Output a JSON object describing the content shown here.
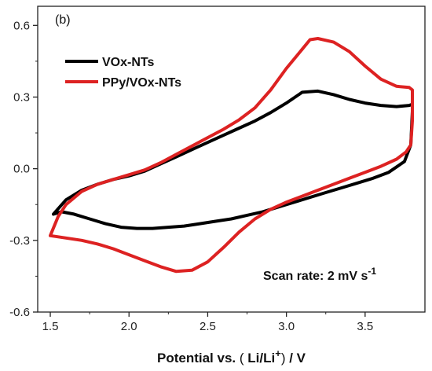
{
  "chart_data": {
    "type": "line",
    "panel_label": "(b)",
    "title": "",
    "xlabel_main": "Potential vs.",
    "xlabel_paren_open": "(",
    "xlabel_ion_base": "Li/Li",
    "xlabel_ion_sup": "+",
    "xlabel_paren_close": ")",
    "xlabel_unit": "/ V",
    "ylabel": "",
    "xlim": [
      1.42,
      3.88
    ],
    "ylim": [
      -0.6,
      0.68
    ],
    "x_ticks": [
      "1.5",
      "2.0",
      "2.5",
      "3.0",
      "3.5"
    ],
    "x_tick_values": [
      1.5,
      2.0,
      2.5,
      3.0,
      3.5
    ],
    "y_ticks": [
      "-0.6",
      "-0.3",
      "0.0",
      "0.3",
      "0.6"
    ],
    "y_tick_values": [
      -0.6,
      -0.3,
      0.0,
      0.3,
      0.6
    ],
    "grid": false,
    "legend_position": "top-left",
    "annotation_main": "Scan rate: 2 mV s",
    "annotation_sup": "-1",
    "series": [
      {
        "name": "VOx-NTs",
        "color": "#000000",
        "closed": true,
        "x": [
          1.52,
          1.6,
          1.7,
          1.8,
          1.9,
          2.0,
          2.1,
          2.2,
          2.3,
          2.4,
          2.5,
          2.6,
          2.7,
          2.8,
          2.9,
          3.0,
          3.1,
          3.2,
          3.3,
          3.4,
          3.5,
          3.6,
          3.7,
          3.78,
          3.8,
          3.8,
          3.79,
          3.75,
          3.65,
          3.55,
          3.45,
          3.35,
          3.25,
          3.15,
          3.05,
          2.95,
          2.85,
          2.75,
          2.65,
          2.55,
          2.45,
          2.35,
          2.25,
          2.15,
          2.05,
          1.95,
          1.85,
          1.75,
          1.65,
          1.57,
          1.52
        ],
        "y": [
          -0.19,
          -0.13,
          -0.09,
          -0.065,
          -0.045,
          -0.03,
          -0.01,
          0.02,
          0.05,
          0.08,
          0.11,
          0.14,
          0.17,
          0.2,
          0.235,
          0.275,
          0.32,
          0.325,
          0.31,
          0.29,
          0.275,
          0.265,
          0.26,
          0.265,
          0.27,
          0.24,
          0.1,
          0.03,
          -0.015,
          -0.04,
          -0.06,
          -0.08,
          -0.1,
          -0.12,
          -0.14,
          -0.16,
          -0.18,
          -0.195,
          -0.21,
          -0.22,
          -0.23,
          -0.24,
          -0.245,
          -0.25,
          -0.25,
          -0.245,
          -0.23,
          -0.21,
          -0.19,
          -0.18,
          -0.19
        ]
      },
      {
        "name": "PPy/VOx-NTs",
        "color": "#dd2222",
        "closed": true,
        "x": [
          1.5,
          1.55,
          1.6,
          1.7,
          1.8,
          1.9,
          2.0,
          2.1,
          2.2,
          2.3,
          2.4,
          2.5,
          2.6,
          2.7,
          2.8,
          2.9,
          3.0,
          3.1,
          3.15,
          3.2,
          3.3,
          3.4,
          3.5,
          3.6,
          3.7,
          3.78,
          3.8,
          3.8,
          3.79,
          3.76,
          3.7,
          3.6,
          3.5,
          3.4,
          3.3,
          3.2,
          3.1,
          3.0,
          2.9,
          2.8,
          2.7,
          2.6,
          2.5,
          2.4,
          2.3,
          2.2,
          2.1,
          2.0,
          1.9,
          1.8,
          1.7,
          1.6,
          1.55,
          1.5
        ],
        "y": [
          -0.28,
          -0.2,
          -0.15,
          -0.095,
          -0.065,
          -0.045,
          -0.025,
          -0.005,
          0.025,
          0.06,
          0.095,
          0.13,
          0.165,
          0.205,
          0.255,
          0.33,
          0.42,
          0.5,
          0.54,
          0.545,
          0.53,
          0.49,
          0.43,
          0.375,
          0.345,
          0.34,
          0.33,
          0.2,
          0.1,
          0.07,
          0.04,
          0.01,
          -0.015,
          -0.04,
          -0.065,
          -0.09,
          -0.115,
          -0.14,
          -0.17,
          -0.21,
          -0.265,
          -0.33,
          -0.39,
          -0.425,
          -0.43,
          -0.41,
          -0.385,
          -0.36,
          -0.335,
          -0.315,
          -0.3,
          -0.29,
          -0.285,
          -0.28
        ]
      }
    ]
  }
}
